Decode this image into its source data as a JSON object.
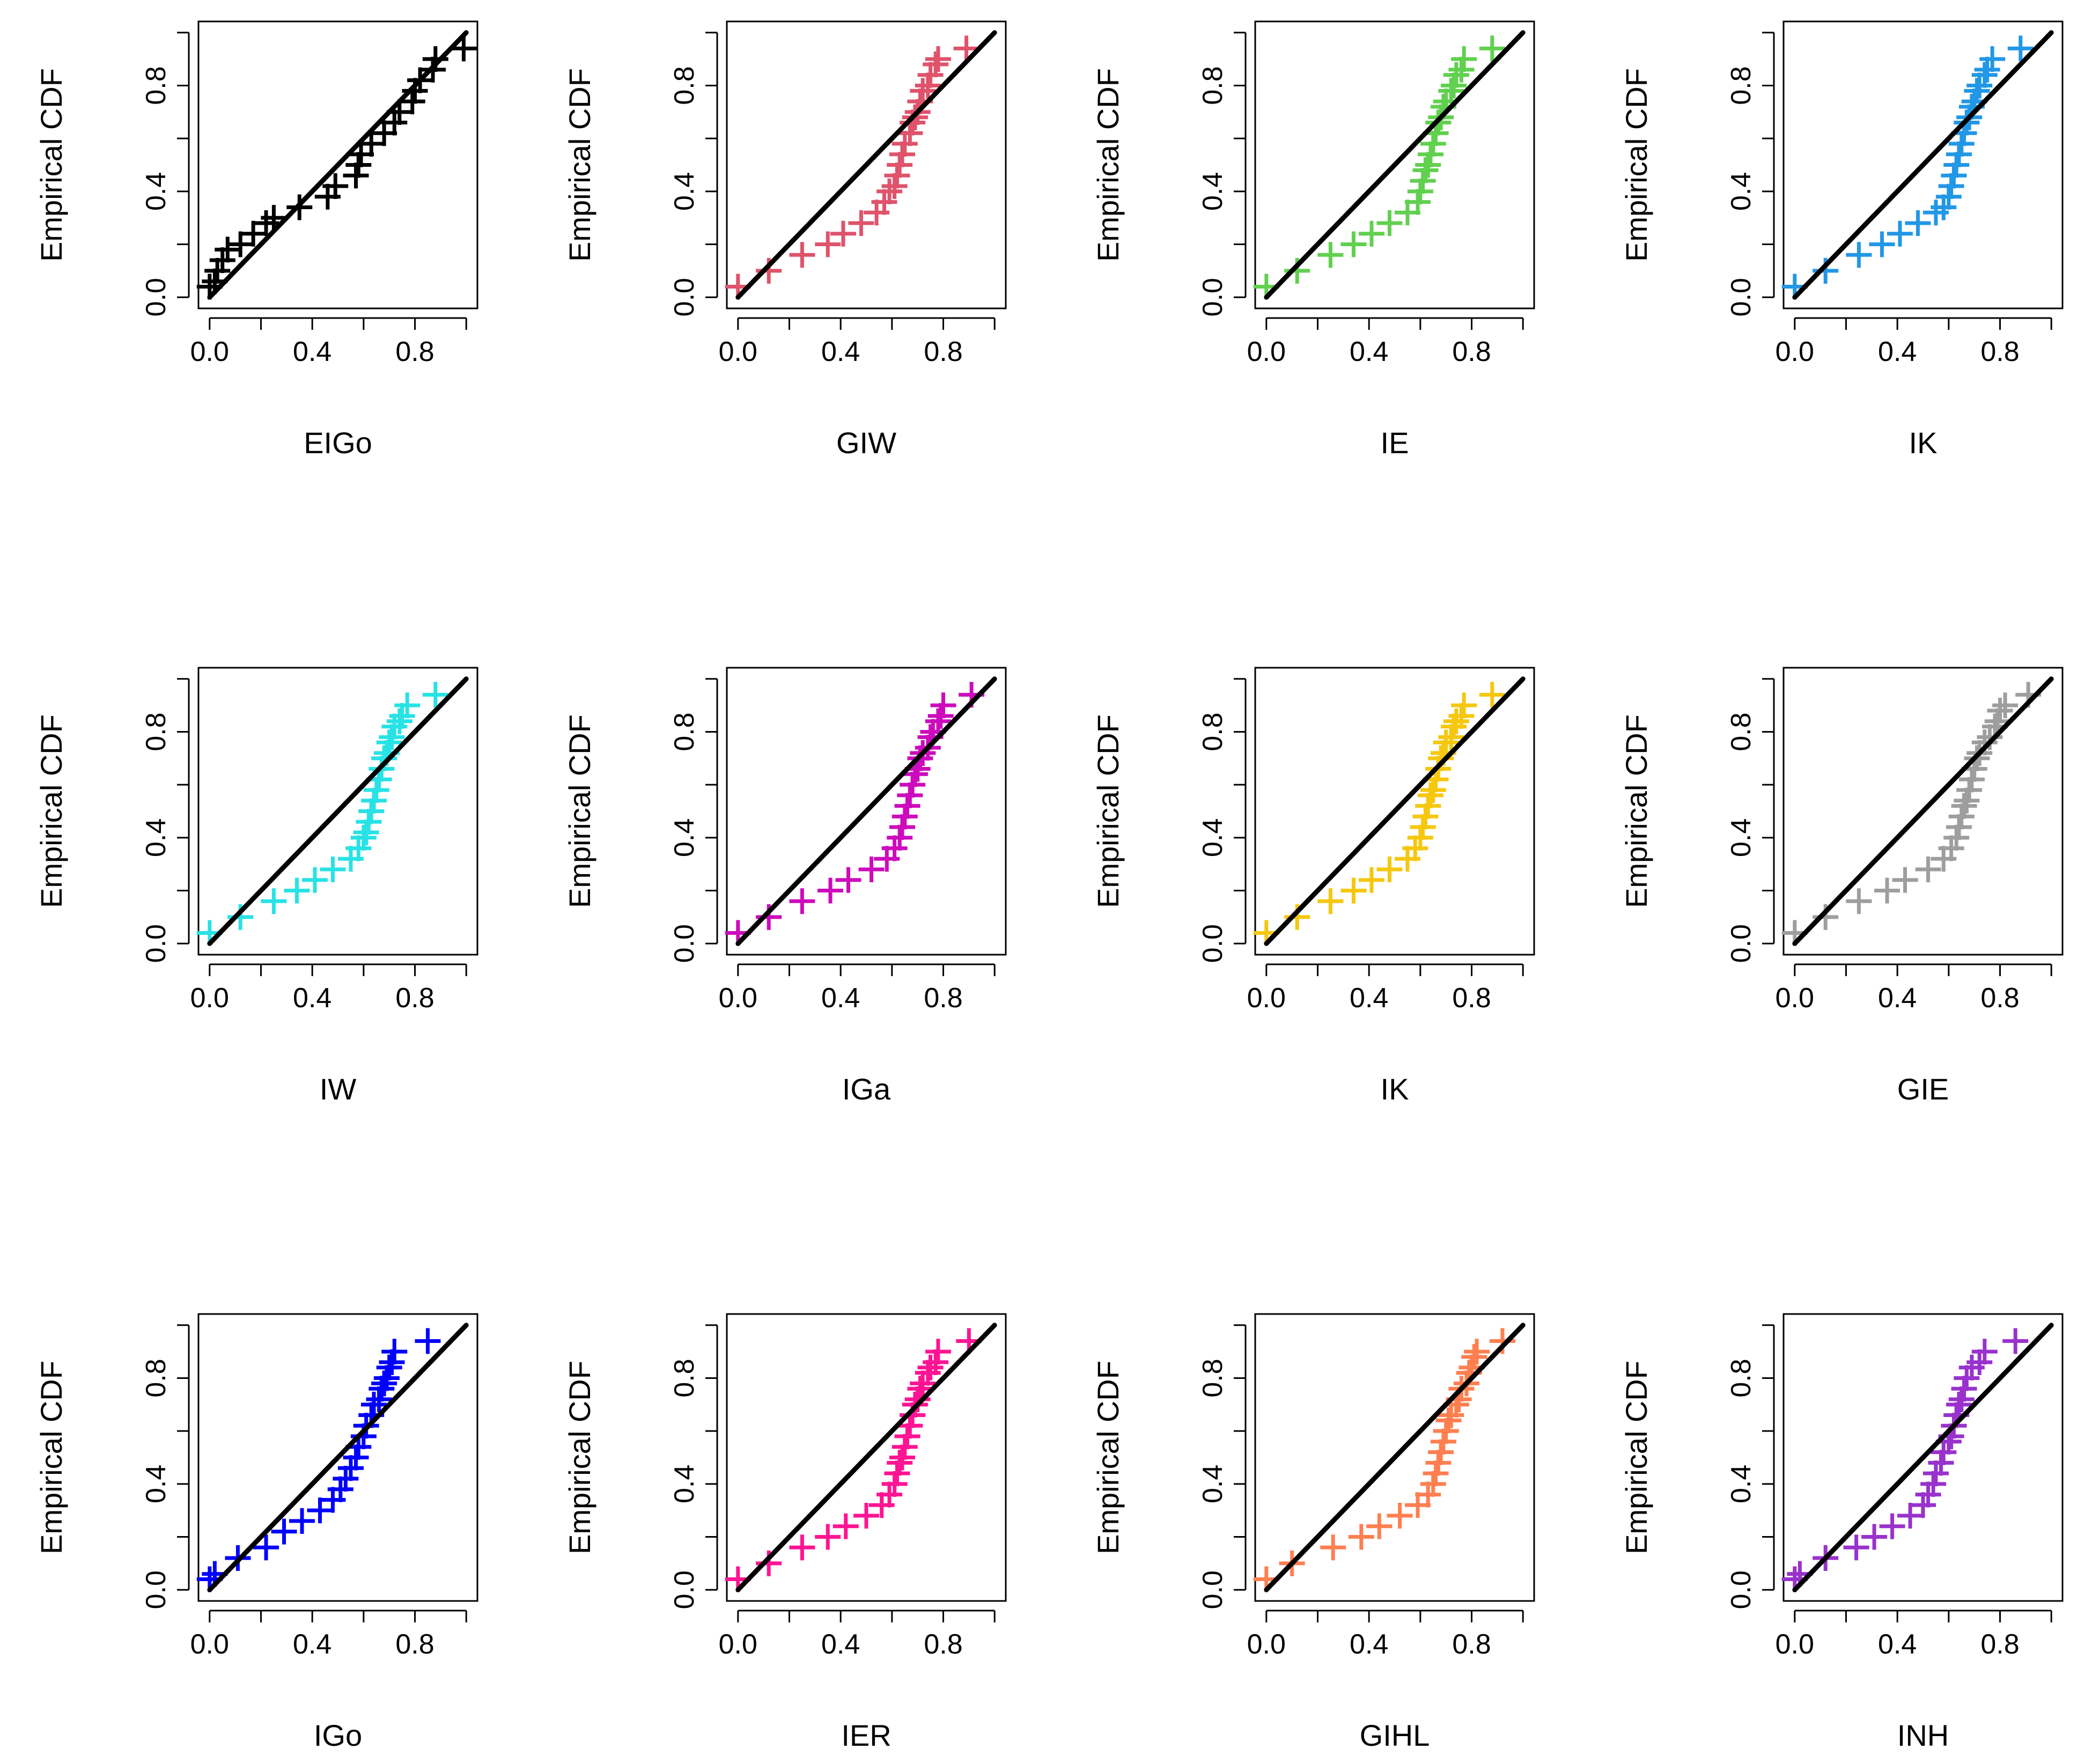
{
  "figure_title": "",
  "chart_data": [
    {
      "type": "scatter",
      "xlabel": "EIGo",
      "ylabel": "Empirical CDF",
      "xlim": [
        0,
        1
      ],
      "ylim": [
        0,
        1
      ],
      "xticks": [
        "0.0",
        "0.4",
        "0.8"
      ],
      "yticks": [
        "0.0",
        "0.4",
        "0.8"
      ],
      "color": "#000000",
      "marker": "+",
      "reference_line": {
        "from": [
          0,
          0
        ],
        "to": [
          1,
          1
        ],
        "color": "#000000"
      },
      "x": [
        0.0,
        0.02,
        0.03,
        0.05,
        0.07,
        0.12,
        0.17,
        0.22,
        0.25,
        0.35,
        0.46,
        0.49,
        0.57,
        0.58,
        0.59,
        0.63,
        0.68,
        0.72,
        0.74,
        0.79,
        0.8,
        0.82,
        0.87,
        0.88,
        0.99
      ],
      "y": [
        0.04,
        0.06,
        0.1,
        0.14,
        0.18,
        0.2,
        0.24,
        0.28,
        0.3,
        0.34,
        0.38,
        0.42,
        0.46,
        0.5,
        0.54,
        0.58,
        0.62,
        0.66,
        0.7,
        0.74,
        0.78,
        0.82,
        0.86,
        0.9,
        0.94
      ]
    },
    {
      "type": "scatter",
      "xlabel": "GIW",
      "ylabel": "Empirical CDF",
      "xlim": [
        0,
        1
      ],
      "ylim": [
        0,
        1
      ],
      "xticks": [
        "0.0",
        "0.4",
        "0.8"
      ],
      "yticks": [
        "0.0",
        "0.4",
        "0.8"
      ],
      "color": "#DF536B",
      "marker": "+",
      "reference_line": {
        "from": [
          0,
          0
        ],
        "to": [
          1,
          1
        ],
        "color": "#000000"
      },
      "x": [
        0.0,
        0.12,
        0.25,
        0.35,
        0.41,
        0.48,
        0.54,
        0.57,
        0.59,
        0.61,
        0.62,
        0.63,
        0.64,
        0.65,
        0.67,
        0.68,
        0.69,
        0.7,
        0.71,
        0.72,
        0.74,
        0.75,
        0.77,
        0.78,
        0.89
      ],
      "y": [
        0.04,
        0.1,
        0.16,
        0.2,
        0.24,
        0.28,
        0.32,
        0.36,
        0.4,
        0.42,
        0.46,
        0.5,
        0.54,
        0.58,
        0.62,
        0.66,
        0.68,
        0.7,
        0.74,
        0.78,
        0.8,
        0.84,
        0.88,
        0.9,
        0.94
      ]
    },
    {
      "type": "scatter",
      "xlabel": "IE",
      "ylabel": "Empirical CDF",
      "xlim": [
        0,
        1
      ],
      "ylim": [
        0,
        1
      ],
      "xticks": [
        "0.0",
        "0.4",
        "0.8"
      ],
      "yticks": [
        "0.0",
        "0.4",
        "0.8"
      ],
      "color": "#61D04F",
      "marker": "+",
      "reference_line": {
        "from": [
          0,
          0
        ],
        "to": [
          1,
          1
        ],
        "color": "#000000"
      },
      "x": [
        0.0,
        0.12,
        0.25,
        0.34,
        0.41,
        0.48,
        0.55,
        0.59,
        0.6,
        0.61,
        0.62,
        0.63,
        0.64,
        0.65,
        0.66,
        0.67,
        0.68,
        0.69,
        0.7,
        0.72,
        0.73,
        0.74,
        0.76,
        0.77,
        0.88
      ],
      "y": [
        0.04,
        0.1,
        0.16,
        0.2,
        0.24,
        0.28,
        0.32,
        0.36,
        0.4,
        0.44,
        0.48,
        0.5,
        0.54,
        0.58,
        0.62,
        0.66,
        0.68,
        0.72,
        0.74,
        0.78,
        0.8,
        0.84,
        0.86,
        0.9,
        0.94
      ]
    },
    {
      "type": "scatter",
      "xlabel": "IK",
      "ylabel": "Empirical CDF",
      "xlim": [
        0,
        1
      ],
      "ylim": [
        0,
        1
      ],
      "xticks": [
        "0.0",
        "0.4",
        "0.8"
      ],
      "yticks": [
        "0.0",
        "0.4",
        "0.8"
      ],
      "color": "#2297E6",
      "marker": "+",
      "reference_line": {
        "from": [
          0,
          0
        ],
        "to": [
          1,
          1
        ],
        "color": "#000000"
      },
      "x": [
        0.0,
        0.12,
        0.25,
        0.34,
        0.41,
        0.48,
        0.55,
        0.58,
        0.6,
        0.61,
        0.62,
        0.63,
        0.64,
        0.65,
        0.66,
        0.67,
        0.68,
        0.69,
        0.7,
        0.71,
        0.72,
        0.74,
        0.75,
        0.77,
        0.88
      ],
      "y": [
        0.04,
        0.1,
        0.16,
        0.2,
        0.24,
        0.28,
        0.32,
        0.34,
        0.38,
        0.42,
        0.46,
        0.5,
        0.54,
        0.58,
        0.62,
        0.66,
        0.68,
        0.72,
        0.74,
        0.78,
        0.8,
        0.84,
        0.86,
        0.9,
        0.94
      ]
    },
    {
      "type": "scatter",
      "xlabel": "IW",
      "ylabel": "Empirical CDF",
      "xlim": [
        0,
        1
      ],
      "ylim": [
        0,
        1
      ],
      "xticks": [
        "0.0",
        "0.4",
        "0.8"
      ],
      "yticks": [
        "0.0",
        "0.4",
        "0.8"
      ],
      "color": "#28E2E5",
      "marker": "+",
      "reference_line": {
        "from": [
          0,
          0
        ],
        "to": [
          1,
          1
        ],
        "color": "#000000"
      },
      "x": [
        0.0,
        0.12,
        0.25,
        0.34,
        0.41,
        0.48,
        0.55,
        0.58,
        0.6,
        0.61,
        0.62,
        0.63,
        0.64,
        0.65,
        0.66,
        0.67,
        0.68,
        0.69,
        0.7,
        0.71,
        0.72,
        0.74,
        0.75,
        0.77,
        0.88
      ],
      "y": [
        0.04,
        0.1,
        0.16,
        0.2,
        0.24,
        0.28,
        0.32,
        0.36,
        0.4,
        0.42,
        0.46,
        0.5,
        0.54,
        0.58,
        0.62,
        0.66,
        0.7,
        0.72,
        0.76,
        0.78,
        0.82,
        0.84,
        0.86,
        0.9,
        0.94
      ]
    },
    {
      "type": "scatter",
      "xlabel": "IGa",
      "ylabel": "Empirical CDF",
      "xlim": [
        0,
        1
      ],
      "ylim": [
        0,
        1
      ],
      "xticks": [
        "0.0",
        "0.4",
        "0.8"
      ],
      "yticks": [
        "0.0",
        "0.4",
        "0.8"
      ],
      "color": "#CD0BBC",
      "marker": "+",
      "reference_line": {
        "from": [
          0,
          0
        ],
        "to": [
          1,
          1
        ],
        "color": "#000000"
      },
      "x": [
        0.0,
        0.12,
        0.25,
        0.36,
        0.43,
        0.52,
        0.58,
        0.61,
        0.63,
        0.64,
        0.65,
        0.66,
        0.67,
        0.68,
        0.69,
        0.7,
        0.71,
        0.72,
        0.74,
        0.75,
        0.76,
        0.78,
        0.79,
        0.8,
        0.91
      ],
      "y": [
        0.04,
        0.1,
        0.16,
        0.2,
        0.24,
        0.28,
        0.32,
        0.36,
        0.4,
        0.44,
        0.48,
        0.52,
        0.56,
        0.6,
        0.64,
        0.66,
        0.7,
        0.72,
        0.74,
        0.78,
        0.8,
        0.84,
        0.86,
        0.9,
        0.94
      ]
    },
    {
      "type": "scatter",
      "xlabel": "IK",
      "ylabel": "Empirical CDF",
      "xlim": [
        0,
        1
      ],
      "ylim": [
        0,
        1
      ],
      "xticks": [
        "0.0",
        "0.4",
        "0.8"
      ],
      "yticks": [
        "0.0",
        "0.4",
        "0.8"
      ],
      "color": "#F5C710",
      "marker": "+",
      "reference_line": {
        "from": [
          0,
          0
        ],
        "to": [
          1,
          1
        ],
        "color": "#000000"
      },
      "x": [
        0.0,
        0.12,
        0.25,
        0.34,
        0.41,
        0.48,
        0.55,
        0.58,
        0.6,
        0.61,
        0.62,
        0.63,
        0.64,
        0.65,
        0.66,
        0.67,
        0.68,
        0.69,
        0.7,
        0.72,
        0.73,
        0.74,
        0.76,
        0.77,
        0.88
      ],
      "y": [
        0.04,
        0.1,
        0.16,
        0.2,
        0.24,
        0.28,
        0.32,
        0.36,
        0.4,
        0.44,
        0.48,
        0.52,
        0.56,
        0.58,
        0.62,
        0.66,
        0.7,
        0.72,
        0.76,
        0.78,
        0.82,
        0.84,
        0.86,
        0.9,
        0.94
      ]
    },
    {
      "type": "scatter",
      "xlabel": "GIE",
      "ylabel": "Empirical CDF",
      "xlim": [
        0,
        1
      ],
      "ylim": [
        0,
        1
      ],
      "xticks": [
        "0.0",
        "0.4",
        "0.8"
      ],
      "yticks": [
        "0.0",
        "0.4",
        "0.8"
      ],
      "color": "#9E9E9E",
      "marker": "+",
      "reference_line": {
        "from": [
          0,
          0
        ],
        "to": [
          1,
          1
        ],
        "color": "#000000"
      },
      "x": [
        0.0,
        0.12,
        0.25,
        0.36,
        0.43,
        0.52,
        0.58,
        0.61,
        0.63,
        0.64,
        0.65,
        0.66,
        0.67,
        0.68,
        0.69,
        0.7,
        0.71,
        0.72,
        0.74,
        0.76,
        0.78,
        0.79,
        0.8,
        0.82,
        0.91
      ],
      "y": [
        0.04,
        0.1,
        0.16,
        0.2,
        0.24,
        0.28,
        0.32,
        0.36,
        0.4,
        0.44,
        0.48,
        0.52,
        0.54,
        0.58,
        0.62,
        0.66,
        0.7,
        0.72,
        0.76,
        0.78,
        0.82,
        0.84,
        0.88,
        0.9,
        0.94
      ]
    },
    {
      "type": "scatter",
      "xlabel": "IGo",
      "ylabel": "Empirical CDF",
      "xlim": [
        0,
        1
      ],
      "ylim": [
        0,
        1
      ],
      "xticks": [
        "0.0",
        "0.4",
        "0.8"
      ],
      "yticks": [
        "0.0",
        "0.4",
        "0.8"
      ],
      "color": "#0000FF",
      "marker": "+",
      "reference_line": {
        "from": [
          0,
          0
        ],
        "to": [
          1,
          1
        ],
        "color": "#000000"
      },
      "x": [
        0.0,
        0.02,
        0.11,
        0.22,
        0.29,
        0.36,
        0.43,
        0.48,
        0.51,
        0.53,
        0.55,
        0.57,
        0.58,
        0.6,
        0.61,
        0.63,
        0.64,
        0.66,
        0.67,
        0.68,
        0.69,
        0.7,
        0.71,
        0.72,
        0.85
      ],
      "y": [
        0.04,
        0.06,
        0.12,
        0.16,
        0.22,
        0.26,
        0.3,
        0.34,
        0.38,
        0.42,
        0.46,
        0.5,
        0.54,
        0.58,
        0.62,
        0.66,
        0.7,
        0.72,
        0.76,
        0.78,
        0.8,
        0.84,
        0.86,
        0.9,
        0.94
      ]
    },
    {
      "type": "scatter",
      "xlabel": "IER",
      "ylabel": "Empirical CDF",
      "xlim": [
        0,
        1
      ],
      "ylim": [
        0,
        1
      ],
      "xticks": [
        "0.0",
        "0.4",
        "0.8"
      ],
      "yticks": [
        "0.0",
        "0.4",
        "0.8"
      ],
      "color": "#FF1493",
      "marker": "+",
      "reference_line": {
        "from": [
          0,
          0
        ],
        "to": [
          1,
          1
        ],
        "color": "#000000"
      },
      "x": [
        0.0,
        0.12,
        0.25,
        0.35,
        0.42,
        0.5,
        0.56,
        0.59,
        0.61,
        0.62,
        0.63,
        0.64,
        0.65,
        0.66,
        0.67,
        0.68,
        0.69,
        0.7,
        0.71,
        0.72,
        0.74,
        0.75,
        0.77,
        0.78,
        0.9
      ],
      "y": [
        0.04,
        0.1,
        0.16,
        0.2,
        0.24,
        0.28,
        0.32,
        0.36,
        0.4,
        0.44,
        0.48,
        0.5,
        0.54,
        0.58,
        0.62,
        0.66,
        0.7,
        0.72,
        0.76,
        0.78,
        0.82,
        0.84,
        0.86,
        0.9,
        0.94
      ]
    },
    {
      "type": "scatter",
      "xlabel": "GIHL",
      "ylabel": "Empirical CDF",
      "xlim": [
        0,
        1
      ],
      "ylim": [
        0,
        1
      ],
      "xticks": [
        "0.0",
        "0.4",
        "0.8"
      ],
      "yticks": [
        "0.0",
        "0.4",
        "0.8"
      ],
      "color": "#FF7F50",
      "marker": "+",
      "reference_line": {
        "from": [
          0,
          0
        ],
        "to": [
          1,
          1
        ],
        "color": "#000000"
      },
      "x": [
        0.0,
        0.1,
        0.26,
        0.37,
        0.44,
        0.52,
        0.59,
        0.63,
        0.65,
        0.66,
        0.67,
        0.68,
        0.69,
        0.7,
        0.71,
        0.72,
        0.74,
        0.75,
        0.76,
        0.78,
        0.79,
        0.8,
        0.81,
        0.82,
        0.92
      ],
      "y": [
        0.04,
        0.1,
        0.16,
        0.2,
        0.24,
        0.28,
        0.32,
        0.36,
        0.4,
        0.44,
        0.48,
        0.52,
        0.56,
        0.6,
        0.64,
        0.66,
        0.7,
        0.72,
        0.76,
        0.78,
        0.82,
        0.84,
        0.88,
        0.9,
        0.94
      ]
    },
    {
      "type": "scatter",
      "xlabel": "INH",
      "ylabel": "Empirical CDF",
      "xlim": [
        0,
        1
      ],
      "ylim": [
        0,
        1
      ],
      "xticks": [
        "0.0",
        "0.4",
        "0.8"
      ],
      "yticks": [
        "0.0",
        "0.4",
        "0.8"
      ],
      "color": "#9932CC",
      "marker": "+",
      "reference_line": {
        "from": [
          0,
          0
        ],
        "to": [
          1,
          1
        ],
        "color": "#000000"
      },
      "x": [
        0.0,
        0.02,
        0.12,
        0.24,
        0.31,
        0.38,
        0.45,
        0.5,
        0.52,
        0.54,
        0.55,
        0.57,
        0.58,
        0.6,
        0.61,
        0.62,
        0.63,
        0.64,
        0.65,
        0.66,
        0.67,
        0.69,
        0.72,
        0.74,
        0.86
      ],
      "y": [
        0.04,
        0.06,
        0.12,
        0.16,
        0.2,
        0.24,
        0.28,
        0.32,
        0.36,
        0.4,
        0.44,
        0.48,
        0.52,
        0.56,
        0.58,
        0.62,
        0.66,
        0.7,
        0.72,
        0.76,
        0.8,
        0.84,
        0.86,
        0.9,
        0.94
      ]
    }
  ]
}
